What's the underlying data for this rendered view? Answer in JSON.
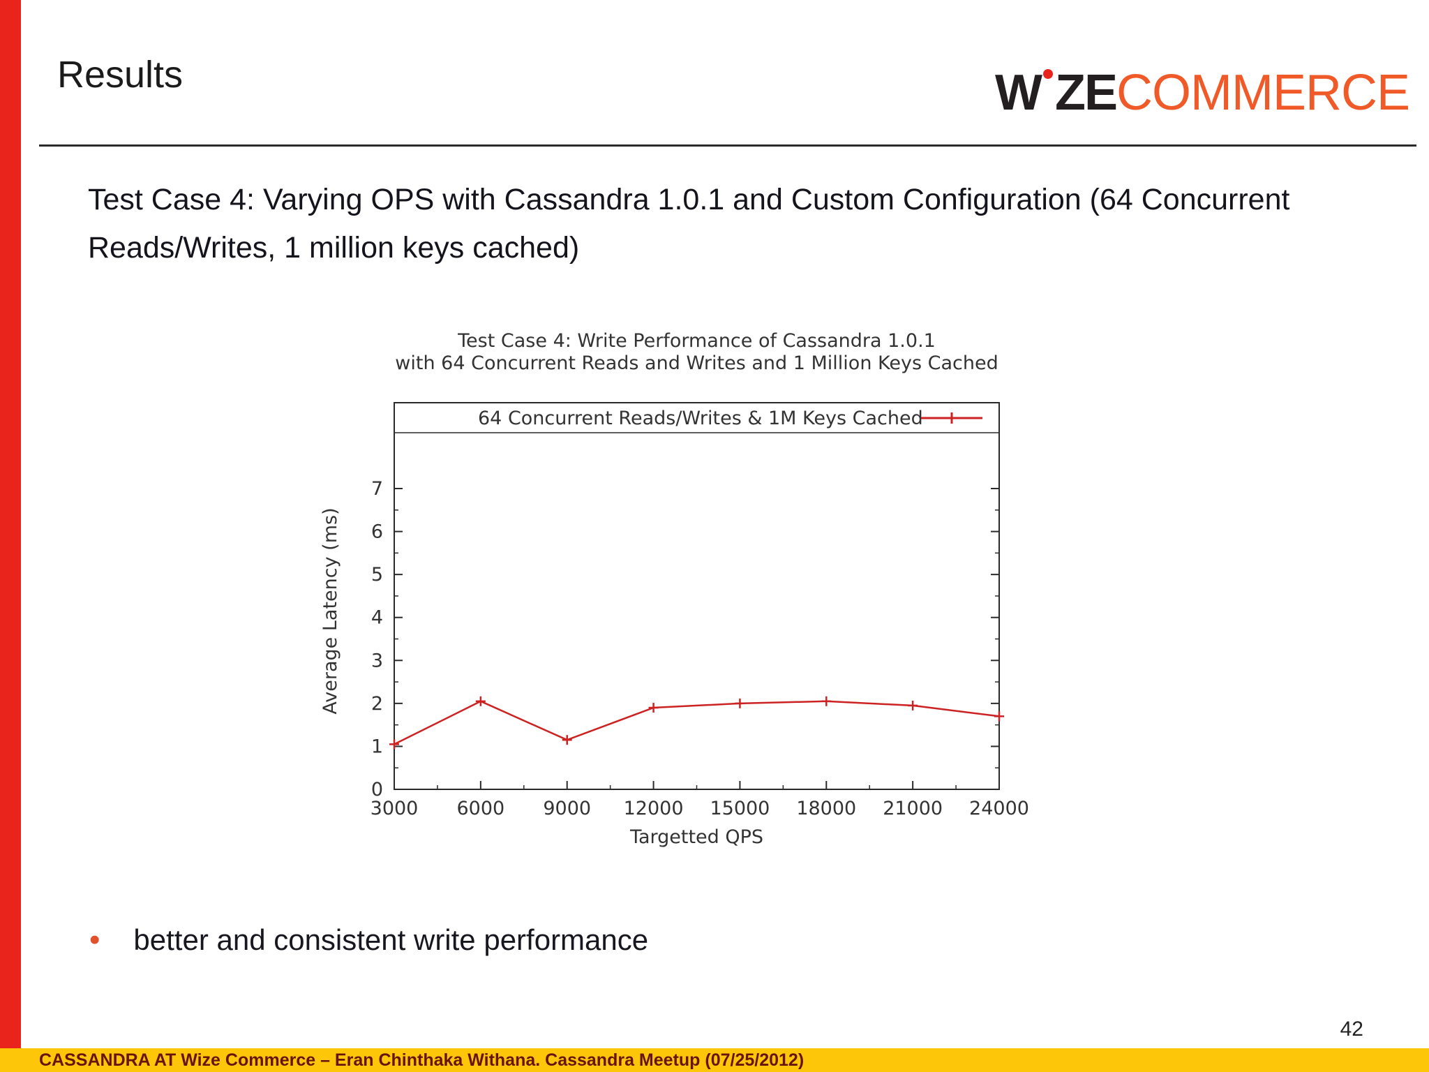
{
  "slide": {
    "header_title": "Results",
    "logo": {
      "part1": "W",
      "part2": "ZE",
      "part3": "COMMERCE"
    },
    "body_title": "Test Case 4:  Varying OPS with Cassandra 1.0.1 and Custom Configuration (64 Concurrent Reads/Writes, 1 million keys cached)",
    "bullet_char": "•",
    "bullet": "better and consistent write performance",
    "page_number": "42",
    "footer": "CASSANDRA AT Wize Commerce – Eran Chinthaka Withana. Cassandra Meetup (07/25/2012)"
  },
  "colors": {
    "accent_bar": "#e8241d",
    "logo_dark": "#231f20",
    "logo_orange": "#f05a28",
    "series_red": "#cc2222",
    "footer_bg": "#fdc608",
    "footer_text": "#69140a"
  },
  "chart_data": {
    "type": "line",
    "title_line1": "Test Case 4: Write Performance of Cassandra 1.0.1",
    "title_line2": "with 64 Concurrent Reads and Writes and 1 Million Keys Cached",
    "legend": "64 Concurrent Reads/Writes & 1M Keys Cached",
    "legend_position": "top",
    "xlabel": "Targetted QPS",
    "ylabel": "Average Latency (ms)",
    "x": [
      3000,
      6000,
      9000,
      12000,
      15000,
      18000,
      21000,
      24000
    ],
    "values": [
      1.05,
      2.05,
      1.15,
      1.9,
      2.0,
      2.05,
      1.95,
      1.7
    ],
    "xticks": [
      3000,
      6000,
      9000,
      12000,
      15000,
      18000,
      21000,
      24000
    ],
    "yticks": [
      0,
      1,
      2,
      3,
      4,
      5,
      6,
      7
    ],
    "xlim": [
      3000,
      24000
    ],
    "ylim": [
      0,
      7
    ],
    "grid": false,
    "series_color": "#cc2222",
    "marker": "plus"
  }
}
